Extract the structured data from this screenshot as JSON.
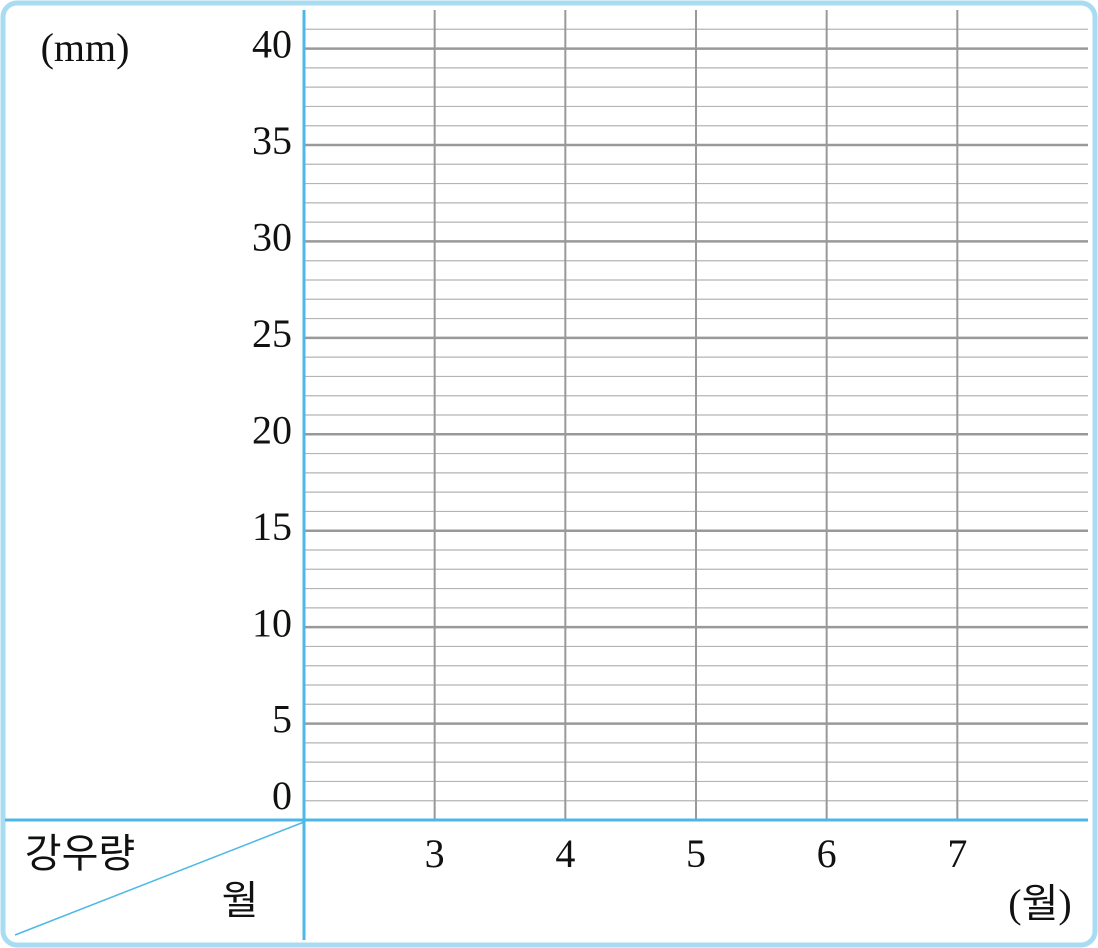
{
  "chart_data": {
    "type": "line",
    "y_axis_label": "(mm)",
    "x_axis_label": "(월)",
    "corner_row_label": "강우량",
    "corner_col_label": "월",
    "categories": [
      "3",
      "4",
      "5",
      "6",
      "7"
    ],
    "series": [],
    "ylim": [
      0,
      42
    ],
    "yticks": [
      0,
      5,
      10,
      15,
      20,
      25,
      30,
      35,
      40
    ],
    "grid": true,
    "minor_divisions": 5,
    "axis_color": "#4db8e8",
    "grid_color": "#999999",
    "minor_grid_color": "#b4b4b4"
  }
}
